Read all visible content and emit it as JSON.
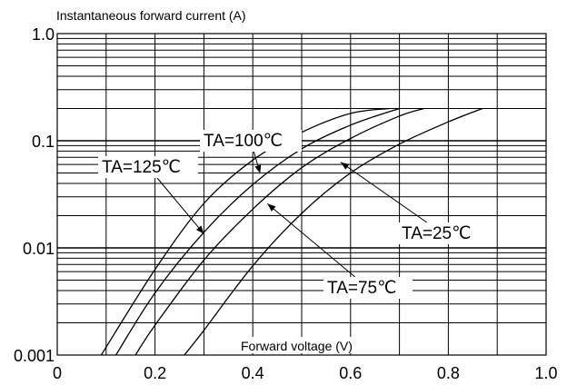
{
  "chart_data": {
    "type": "line",
    "title": "",
    "ylabel": "Instantaneous forward current (A)",
    "xlabel": "Forward voltage (V)",
    "x_scale": "linear",
    "y_scale": "log",
    "xlim": [
      0,
      1.0
    ],
    "ylim": [
      0.001,
      1.0
    ],
    "x_ticks": [
      0,
      0.2,
      0.4,
      0.6,
      0.8,
      1.0
    ],
    "x_tick_labels": [
      "0",
      "0.2",
      "0.4",
      "0.6",
      "0.8",
      "1.0"
    ],
    "y_ticks": [
      0.001,
      0.01,
      0.1,
      1.0
    ],
    "y_tick_labels": [
      "0.001",
      "0.01",
      "0.1",
      "1.0"
    ],
    "grid": true,
    "series": [
      {
        "name": "TA=125℃",
        "x": [
          0.09,
          0.2,
          0.3,
          0.4,
          0.5,
          0.6,
          0.68
        ],
        "y": [
          0.001,
          0.0063,
          0.026,
          0.066,
          0.12,
          0.18,
          0.2
        ]
      },
      {
        "name": "TA=100℃",
        "x": [
          0.12,
          0.2,
          0.3,
          0.4,
          0.5,
          0.6,
          0.7
        ],
        "y": [
          0.001,
          0.0038,
          0.014,
          0.039,
          0.084,
          0.14,
          0.2
        ]
      },
      {
        "name": "TA=75℃",
        "x": [
          0.16,
          0.2,
          0.3,
          0.4,
          0.5,
          0.6,
          0.7,
          0.75
        ],
        "y": [
          0.001,
          0.0019,
          0.0077,
          0.023,
          0.056,
          0.105,
          0.17,
          0.2
        ]
      },
      {
        "name": "TA=25℃",
        "x": [
          0.26,
          0.3,
          0.4,
          0.5,
          0.6,
          0.7,
          0.8,
          0.87
        ],
        "y": [
          0.001,
          0.0017,
          0.0068,
          0.021,
          0.05,
          0.093,
          0.15,
          0.2
        ]
      }
    ],
    "annotations": [
      {
        "series": "TA=125℃",
        "x": 0.3,
        "y": 0.0135
      },
      {
        "series": "TA=100℃",
        "x": 0.415,
        "y": 0.0495
      },
      {
        "series": "TA=75℃",
        "x": 0.43,
        "y": 0.0258
      },
      {
        "series": "TA=25℃",
        "x": 0.58,
        "y": 0.063
      }
    ]
  }
}
